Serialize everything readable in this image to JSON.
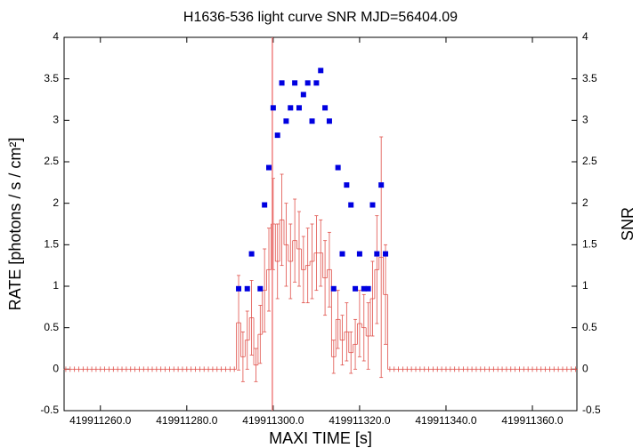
{
  "chart_data": {
    "type": "errorstep",
    "title": "H1636-536 light curve  SNR MJD=56404.09",
    "xlabel": "MAXI TIME [s]",
    "ylabel": "RATE [photons / s / cm²]",
    "y2label": "SNR",
    "xlim": [
      419911251.6,
      419911370.3
    ],
    "xticks": [
      {
        "value": 419911260,
        "label": "419911260.0"
      },
      {
        "value": 419911280,
        "label": "419911280.0"
      },
      {
        "value": 419911300,
        "label": "419911300.0"
      },
      {
        "value": 419911320,
        "label": "419911320.0"
      },
      {
        "value": 419911340,
        "label": "419911340.0"
      },
      {
        "value": 419911360,
        "label": "419911360.0"
      }
    ],
    "ylim": [
      -0.5,
      4
    ],
    "yticks": [
      -0.5,
      0,
      0.5,
      1,
      1.5,
      2,
      2.5,
      3,
      3.5,
      4
    ],
    "y2lim": [
      -0.5,
      4
    ],
    "y2ticks": [
      -0.5,
      0,
      0.5,
      1,
      1.5,
      2,
      2.5,
      3,
      3.5,
      4
    ],
    "vline": {
      "value": 419911299.8,
      "color": "#f08080"
    },
    "series": [
      {
        "color": "#e0504a",
        "x": [
          419911252,
          419911253,
          419911254,
          419911255,
          419911256,
          419911257,
          419911258,
          419911259,
          419911260,
          419911261,
          419911262,
          419911263,
          419911264,
          419911265,
          419911266,
          419911267,
          419911268,
          419911269,
          419911270,
          419911271,
          419911272,
          419911273,
          419911274,
          419911275,
          419911276,
          419911277,
          419911278,
          419911279,
          419911280,
          419911281,
          419911282,
          419911283,
          419911284,
          419911285,
          419911286,
          419911287,
          419911288,
          419911289,
          419911290,
          419911291,
          419911292,
          419911293,
          419911294,
          419911295,
          419911296,
          419911297,
          419911298,
          419911299,
          419911300,
          419911301,
          419911302,
          419911303,
          419911304,
          419911305,
          419911306,
          419911307,
          419911308,
          419911309,
          419911310,
          419911311,
          419911312,
          419911313,
          419911314,
          419911315,
          419911316,
          419911317,
          419911318,
          419911319,
          419911320,
          419911321,
          419911322,
          419911323,
          419911324,
          419911325,
          419911326,
          419911327,
          419911328,
          419911329,
          419911330,
          419911331,
          419911332,
          419911333,
          419911334,
          419911335,
          419911336,
          419911337,
          419911338,
          419911339,
          419911340,
          419911341,
          419911342,
          419911343,
          419911344,
          419911345,
          419911346,
          419911347,
          419911348,
          419911349,
          419911350,
          419911351,
          419911352,
          419911353,
          419911354,
          419911355,
          419911356,
          419911357,
          419911358,
          419911359,
          419911360,
          419911361,
          419911362,
          419911363,
          419911364,
          419911365,
          419911366,
          419911367,
          419911368,
          419911369,
          419911370
        ],
        "values": [
          0,
          0,
          0,
          0,
          0,
          0,
          0,
          0,
          0,
          0,
          0,
          0,
          0,
          0,
          0,
          0,
          0,
          0,
          0,
          0,
          0,
          0,
          0,
          0,
          0,
          0,
          0,
          0,
          0,
          0,
          0,
          0,
          0,
          0,
          0,
          0,
          0,
          0,
          0,
          0,
          0.56,
          0.15,
          0.35,
          0.62,
          0.05,
          0.42,
          0.95,
          1.2,
          1.75,
          1.3,
          1.8,
          1.5,
          1.3,
          1.55,
          1.45,
          1.2,
          1.25,
          1.3,
          1.4,
          1.4,
          1.1,
          1.2,
          0.15,
          0.6,
          0.35,
          0.45,
          0.2,
          0.3,
          0.55,
          0.5,
          0.4,
          0.85,
          1.2,
          1.35,
          0.9,
          0,
          0,
          0,
          0,
          0,
          0,
          0,
          0,
          0,
          0,
          0,
          0,
          0,
          0,
          0,
          0,
          0,
          0,
          0,
          0,
          0,
          0,
          0,
          0,
          0,
          0,
          0,
          0,
          0,
          0,
          0,
          0,
          0,
          0,
          0,
          0,
          0,
          0,
          0,
          0,
          0,
          0,
          0,
          0
        ],
        "errors": [
          0,
          0,
          0,
          0,
          0,
          0,
          0,
          0,
          0,
          0,
          0,
          0,
          0,
          0,
          0,
          0,
          0,
          0,
          0,
          0,
          0,
          0,
          0,
          0,
          0,
          0,
          0,
          0,
          0,
          0,
          0,
          0,
          0,
          0,
          0,
          0,
          0,
          0,
          0,
          0,
          0.57,
          0.3,
          0.35,
          0.45,
          0.2,
          0.35,
          0.5,
          0.5,
          0.55,
          0.45,
          0.55,
          0.5,
          0.45,
          0.5,
          0.45,
          0.4,
          0.45,
          0.45,
          0.45,
          0.4,
          0.45,
          0.45,
          0.2,
          0.35,
          0.3,
          0.35,
          0.25,
          0.3,
          0.4,
          0.4,
          0.4,
          0.45,
          0.65,
          1.45,
          0.6,
          0,
          0,
          0,
          0,
          0,
          0,
          0,
          0,
          0,
          0,
          0,
          0,
          0,
          0,
          0,
          0,
          0,
          0,
          0,
          0,
          0,
          0,
          0,
          0,
          0,
          0,
          0,
          0,
          0,
          0,
          0,
          0,
          0,
          0,
          0,
          0,
          0,
          0,
          0,
          0,
          0,
          0,
          0,
          0
        ]
      },
      {
        "color": "#0000e0",
        "axis": "y2",
        "x": [
          419911292,
          419911294,
          419911295,
          419911297,
          419911298,
          419911299,
          419911300,
          419911301,
          419911302,
          419911303,
          419911304,
          419911305,
          419911306,
          419911307,
          419911308,
          419911309,
          419911310,
          419911311,
          419911312,
          419911313,
          419911314,
          419911315,
          419911316,
          419911317,
          419911318,
          419911319,
          419911320,
          419911321,
          419911322,
          419911323,
          419911324,
          419911325,
          419911326
        ],
        "values": [
          0.97,
          0.97,
          1.39,
          0.97,
          1.98,
          2.43,
          3.15,
          2.82,
          3.45,
          2.99,
          3.15,
          3.45,
          3.15,
          3.31,
          3.45,
          2.99,
          3.45,
          3.6,
          3.15,
          2.99,
          0.97,
          2.43,
          1.39,
          2.22,
          1.98,
          0.97,
          1.39,
          0.97,
          0.97,
          1.98,
          1.39,
          2.22,
          1.39
        ]
      }
    ]
  }
}
